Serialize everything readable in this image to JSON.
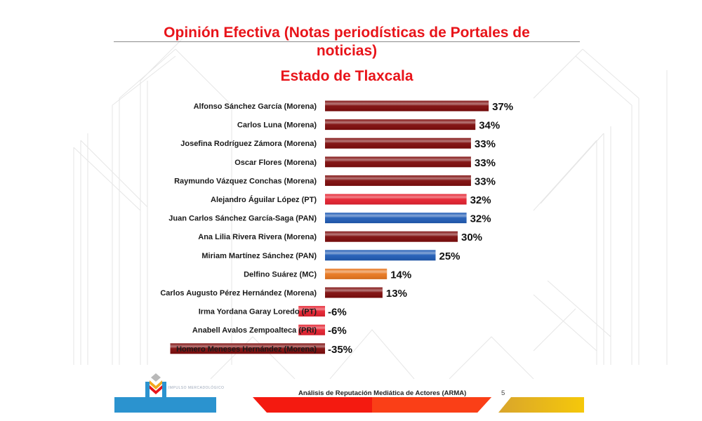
{
  "header": {
    "title_line1": "Opinión Efectiva (Notas periodísticas de Portales de",
    "title_line2": "noticias)",
    "subtitle": "Estado de Tlaxcala"
  },
  "colors": {
    "title": "#e8141a",
    "Morena": "#7d0a0a",
    "PT": "#e5202e",
    "PAN": "#1f5bb5",
    "MC": "#e8761e",
    "PRI": "#e5202e"
  },
  "chart_data": {
    "type": "bar",
    "orientation": "horizontal",
    "title": "Opinión Efectiva (Notas periodísticas de Portales de noticias)",
    "subtitle": "Estado de Tlaxcala",
    "unit": "%",
    "categories": [
      "Alfonso Sánchez García (Morena)",
      "Carlos Luna (Morena)",
      "Josefina Rodríguez Zámora (Morena)",
      "Oscar Flores (Morena)",
      "Raymundo Vázquez Conchas (Morena)",
      "Alejandro Águilar López (PT)",
      "Juan Carlos Sánchez García-Saga (PAN)",
      "Ana Lilia Rivera Rivera (Morena)",
      "Miriam Martínez Sánchez (PAN)",
      "Delfino Suárez (MC)",
      "Carlos Augusto Pérez Hernández (Morena)",
      "Irma Yordana Garay Loredo (PT)",
      "Anabell Avalos Zempoalteca (PRI)",
      "Homero Meneses Hernández (Morena)"
    ],
    "values": [
      37,
      34,
      33,
      33,
      33,
      32,
      32,
      30,
      25,
      14,
      13,
      -6,
      -6,
      -35
    ],
    "value_labels": [
      "37%",
      "34%",
      "33%",
      "33%",
      "33%",
      "32%",
      "32%",
      "30%",
      "25%",
      "14%",
      "13%",
      "-6%",
      "-6%",
      "-35%"
    ],
    "parties": [
      "Morena",
      "Morena",
      "Morena",
      "Morena",
      "Morena",
      "PT",
      "PAN",
      "Morena",
      "PAN",
      "MC",
      "Morena",
      "PT",
      "PRI",
      "Morena"
    ],
    "xlim": [
      -35,
      37
    ],
    "grid": false,
    "legend": "none"
  },
  "footer": {
    "report_title": "Análisis de Reputación Mediática de Actores (ARMA)",
    "page_number": "5",
    "logo_text": "IMPULSO MERCADOLÓGICO"
  }
}
